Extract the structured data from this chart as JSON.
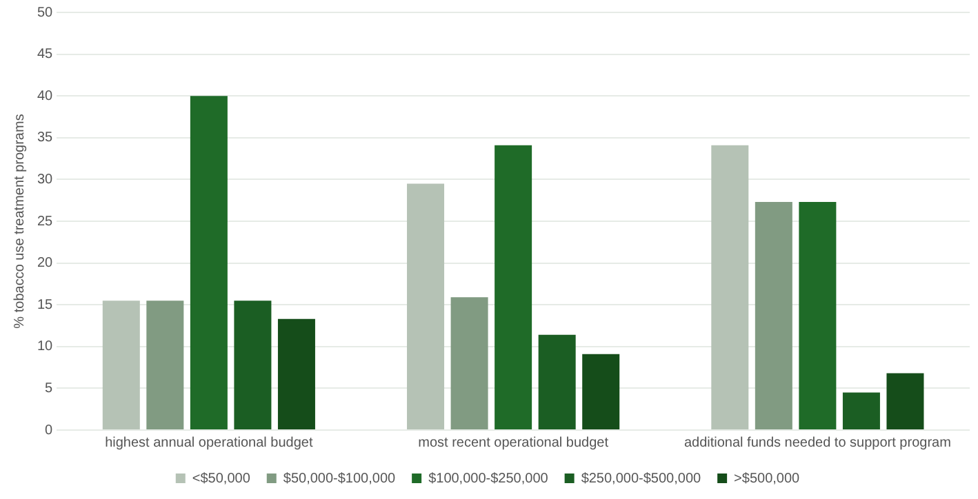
{
  "chart_data": {
    "type": "bar",
    "ylabel": "% tobacco use treatment programs",
    "categories": [
      "highest annual operational budget",
      "most recent operational budget",
      "additional funds needed to support program"
    ],
    "series": [
      {
        "name": "<$50,000",
        "color": "#b5c2b5",
        "values": [
          15.5,
          29.5,
          34.1
        ]
      },
      {
        "name": "$50,000-$100,000",
        "color": "#819b82",
        "values": [
          15.5,
          15.9,
          27.3
        ]
      },
      {
        "name": "$100,000-$250,000",
        "color": "#1f6b28",
        "values": [
          40,
          34.1,
          27.3
        ]
      },
      {
        "name": "$250,000-$500,000",
        "color": "#1b5e23",
        "values": [
          15.5,
          11.4,
          4.5
        ]
      },
      {
        "name": ">$500,000",
        "color": "#154d1a",
        "values": [
          13.3,
          9.1,
          6.8
        ]
      }
    ],
    "ylim": [
      0,
      50
    ],
    "yticks": [
      0,
      5,
      10,
      15,
      20,
      25,
      30,
      35,
      40,
      45,
      50
    ],
    "grid": "y",
    "legend": "bottom"
  }
}
